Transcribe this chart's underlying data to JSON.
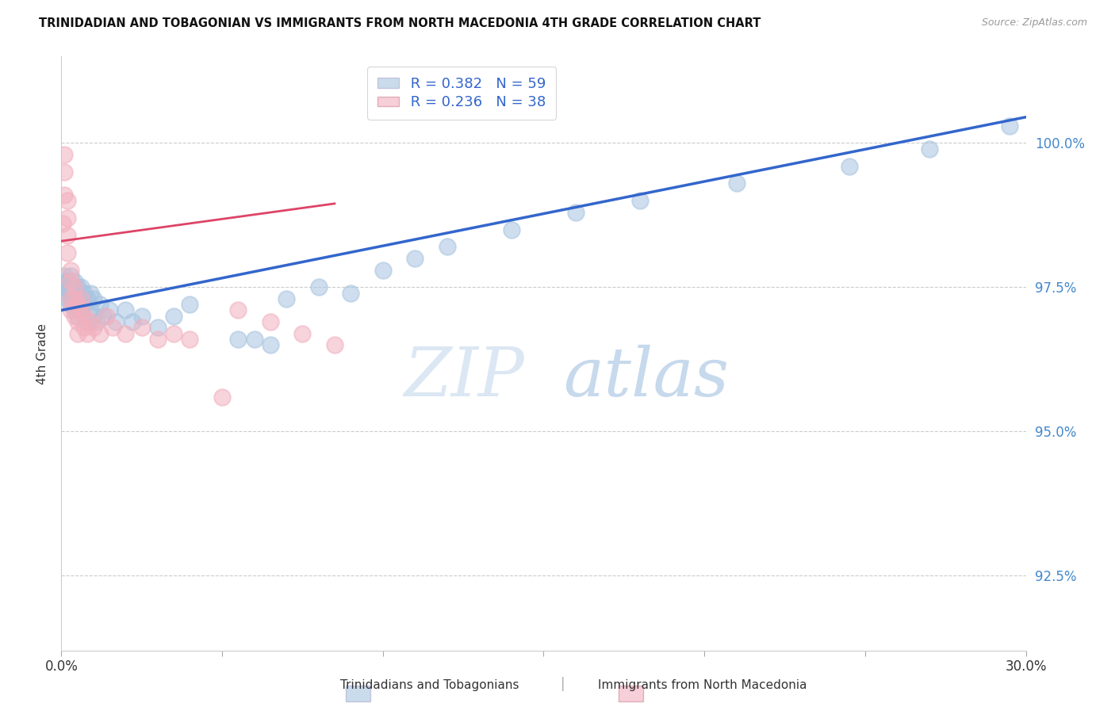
{
  "title": "TRINIDADIAN AND TOBAGONIAN VS IMMIGRANTS FROM NORTH MACEDONIA 4TH GRADE CORRELATION CHART",
  "source": "Source: ZipAtlas.com",
  "ylabel": "4th Grade",
  "y_ticks": [
    92.5,
    95.0,
    97.5,
    100.0
  ],
  "watermark_zip": "ZIP",
  "watermark_atlas": "atlas",
  "legend_blue_r": "R = 0.382",
  "legend_blue_n": "N = 59",
  "legend_pink_r": "R = 0.236",
  "legend_pink_n": "N = 38",
  "blue_color": "#a8c4e0",
  "pink_color": "#f2b0be",
  "blue_line_color": "#3366cc",
  "pink_line_color": "#dd4466",
  "blue_x": [
    0.0005,
    0.001,
    0.001,
    0.0015,
    0.002,
    0.002,
    0.002,
    0.0025,
    0.003,
    0.003,
    0.003,
    0.003,
    0.0035,
    0.004,
    0.004,
    0.004,
    0.004,
    0.005,
    0.005,
    0.005,
    0.005,
    0.006,
    0.006,
    0.006,
    0.007,
    0.007,
    0.008,
    0.008,
    0.009,
    0.009,
    0.01,
    0.01,
    0.011,
    0.012,
    0.013,
    0.015,
    0.017,
    0.02,
    0.022,
    0.025,
    0.03,
    0.035,
    0.04,
    0.055,
    0.06,
    0.065,
    0.07,
    0.08,
    0.09,
    0.1,
    0.11,
    0.12,
    0.14,
    0.16,
    0.18,
    0.21,
    0.245,
    0.27,
    0.295
  ],
  "blue_y": [
    97.4,
    97.5,
    97.7,
    97.6,
    97.3,
    97.5,
    97.6,
    97.4,
    97.2,
    97.4,
    97.5,
    97.7,
    97.3,
    97.1,
    97.3,
    97.5,
    97.6,
    97.0,
    97.2,
    97.4,
    97.5,
    97.1,
    97.3,
    97.5,
    97.2,
    97.4,
    96.9,
    97.3,
    97.1,
    97.4,
    97.0,
    97.3,
    96.9,
    97.2,
    97.0,
    97.1,
    96.9,
    97.1,
    96.9,
    97.0,
    96.8,
    97.0,
    97.2,
    96.6,
    96.6,
    96.5,
    97.3,
    97.5,
    97.4,
    97.8,
    98.0,
    98.2,
    98.5,
    98.8,
    99.0,
    99.3,
    99.6,
    99.9,
    100.3
  ],
  "pink_x": [
    0.0005,
    0.001,
    0.001,
    0.001,
    0.002,
    0.002,
    0.002,
    0.002,
    0.003,
    0.003,
    0.003,
    0.003,
    0.004,
    0.004,
    0.004,
    0.005,
    0.005,
    0.005,
    0.006,
    0.006,
    0.007,
    0.007,
    0.008,
    0.009,
    0.01,
    0.012,
    0.014,
    0.016,
    0.02,
    0.025,
    0.03,
    0.035,
    0.04,
    0.05,
    0.055,
    0.065,
    0.075,
    0.085
  ],
  "pink_y": [
    98.6,
    99.8,
    99.5,
    99.1,
    99.0,
    98.7,
    98.4,
    98.1,
    97.8,
    97.6,
    97.3,
    97.1,
    97.0,
    97.3,
    97.5,
    97.2,
    96.9,
    96.7,
    97.1,
    97.3,
    97.0,
    96.8,
    96.7,
    96.9,
    96.8,
    96.7,
    97.0,
    96.8,
    96.7,
    96.8,
    96.6,
    96.7,
    96.6,
    95.6,
    97.1,
    96.9,
    96.7,
    96.5
  ],
  "blue_line_x": [
    0.0,
    0.3
  ],
  "blue_line_y": [
    97.1,
    100.45
  ],
  "pink_line_x": [
    0.0,
    0.085
  ],
  "pink_line_y": [
    98.3,
    98.95
  ],
  "xlim": [
    0.0,
    0.3
  ],
  "ylim": [
    91.2,
    101.5
  ],
  "x_ticks": [
    0.0,
    0.05,
    0.1,
    0.15,
    0.2,
    0.25,
    0.3
  ]
}
